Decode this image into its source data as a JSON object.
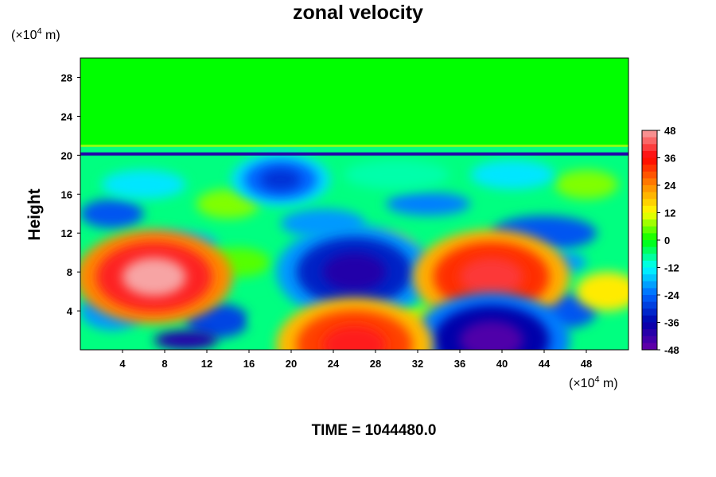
{
  "chart_data": {
    "type": "heatmap",
    "title": "zonal velocity",
    "xlabel": "",
    "ylabel": "Height",
    "x_unit": "(×10⁴ m)",
    "y_unit": "(×10⁴ m)",
    "footer": "TIME = 1044480.0",
    "xlim": [
      0,
      52
    ],
    "ylim": [
      0,
      30
    ],
    "x_ticks": [
      "4",
      "8",
      "12",
      "16",
      "20",
      "24",
      "28",
      "32",
      "36",
      "40",
      "44",
      "48"
    ],
    "y_ticks": [
      "4",
      "8",
      "12",
      "16",
      "20",
      "24",
      "28"
    ],
    "colorbar": {
      "min": -48,
      "max": 48,
      "tick_labels": [
        "48",
        "36",
        "24",
        "12",
        "0",
        "-12",
        "-24",
        "-36",
        "-48"
      ],
      "colors": [
        "#f7a4a4",
        "#ff0000",
        "#ff8800",
        "#ffff00",
        "#00ff00",
        "#00ffff",
        "#0066ff",
        "#0000aa",
        "#6a00a8"
      ]
    },
    "features": [
      {
        "x": 7,
        "y": 7.5,
        "value": 48,
        "note": "positive core"
      },
      {
        "x": 26,
        "y": 8,
        "value": -40,
        "note": "negative core"
      },
      {
        "x": 39,
        "y": 7.5,
        "value": 40,
        "note": "positive core"
      },
      {
        "x": 39,
        "y": 1,
        "value": -45,
        "note": "negative core"
      },
      {
        "x": 26,
        "y": 0.5,
        "value": 38,
        "note": "positive core"
      },
      {
        "x": 19,
        "y": 17.5,
        "value": -30,
        "note": "negative core"
      },
      {
        "x": 26,
        "y": 20,
        "value": -38,
        "note": "jet line"
      }
    ]
  }
}
